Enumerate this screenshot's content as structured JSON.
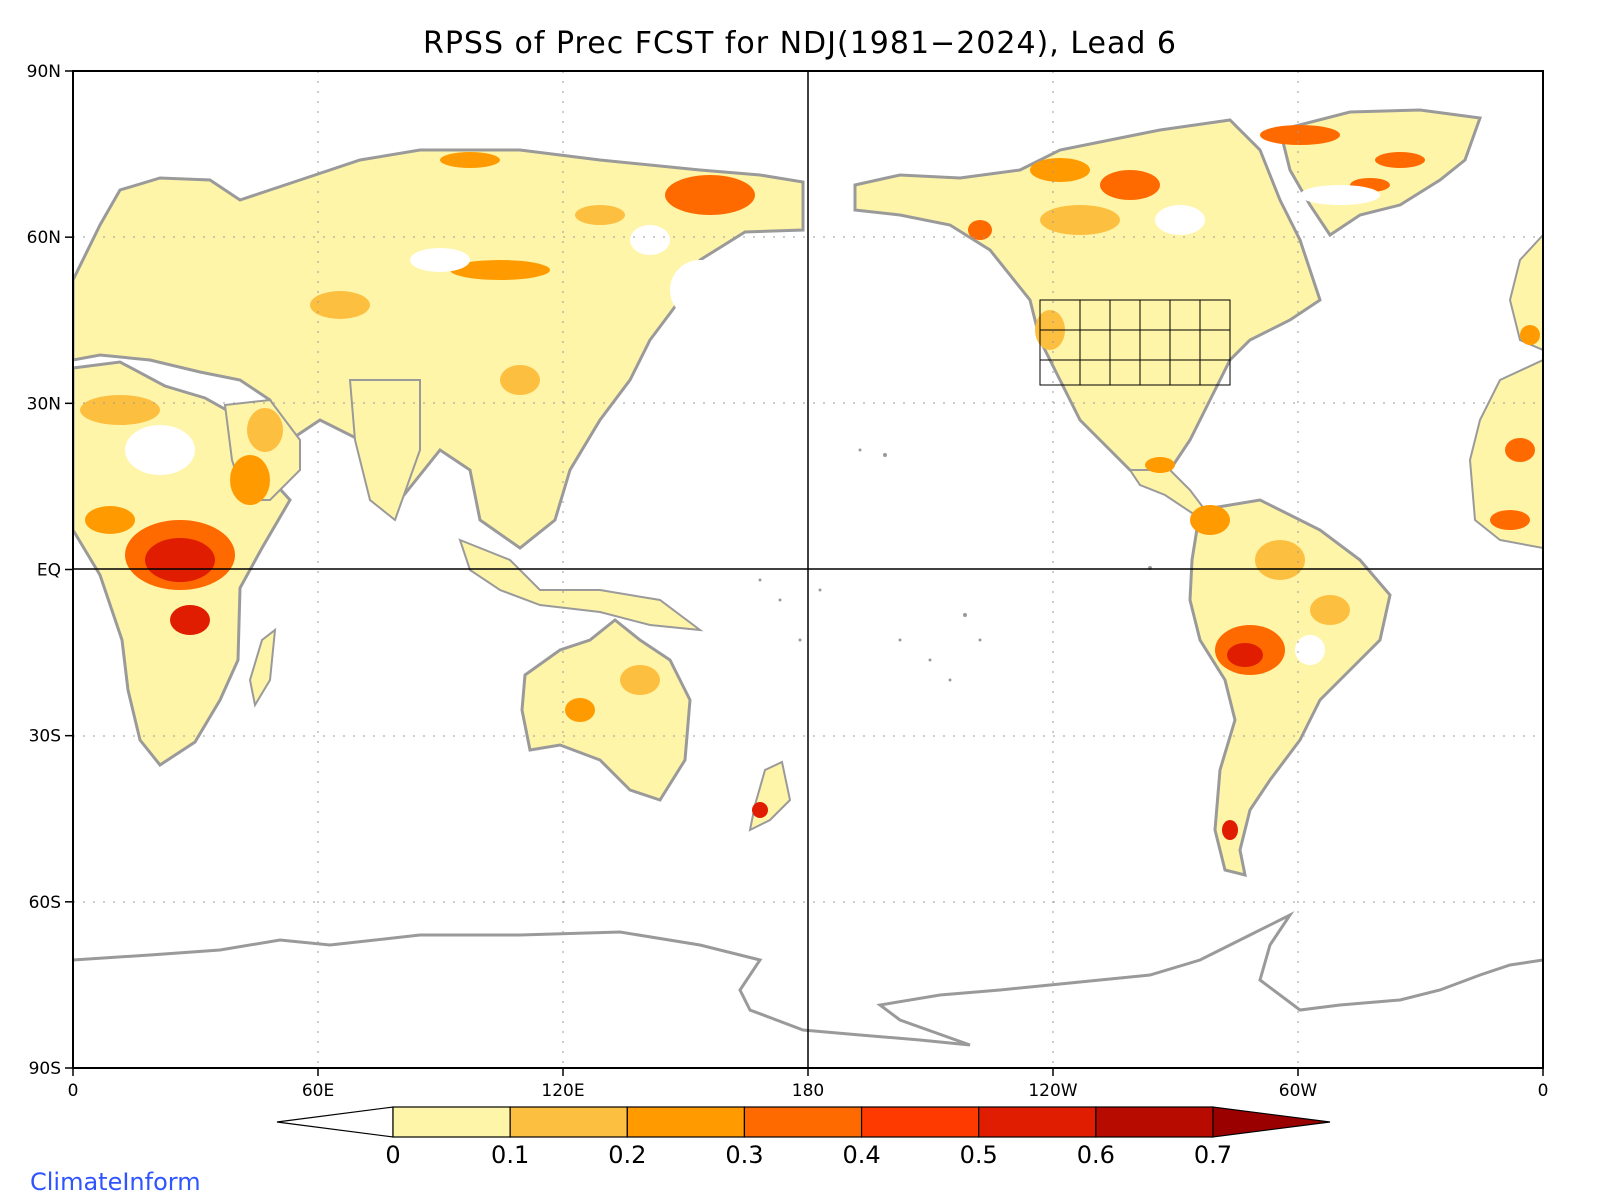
{
  "title": "RPSS of Prec FCST for NDJ(1981−2024), Lead 6",
  "credit": "ClimateInform",
  "map": {
    "projection": "equirectangular",
    "center_longitude": 180,
    "grid": "dotted, every 60° longitude and 30° latitude",
    "x_ticks": [
      "0",
      "60E",
      "120E",
      "180",
      "120W",
      "60W",
      "0"
    ],
    "y_ticks": [
      "90N",
      "60N",
      "30N",
      "EQ",
      "30S",
      "60S",
      "90S"
    ],
    "coastline_color": "#9a9a9a",
    "reference_lines": [
      "EQ",
      "180"
    ]
  },
  "colorbar": {
    "bounds": [
      "0",
      "0.1",
      "0.2",
      "0.3",
      "0.4",
      "0.5",
      "0.6",
      "0.7"
    ],
    "under_color": "#ffffff",
    "colors": [
      "#fff5a8",
      "#fdbf40",
      "#ff9b00",
      "#ff6a00",
      "#ff3a00",
      "#e01d00",
      "#b80b00"
    ],
    "over_color": "#9a0000"
  },
  "regions": [
    {
      "name": "Central Africa",
      "level": 5
    },
    {
      "name": "Northeast Siberia",
      "level": 3
    },
    {
      "name": "Greenland",
      "level": 3
    },
    {
      "name": "Northern Canada",
      "level": 3
    },
    {
      "name": "Bolivia / Andes",
      "level": 4
    },
    {
      "name": "New Zealand",
      "level": 5
    }
  ]
}
